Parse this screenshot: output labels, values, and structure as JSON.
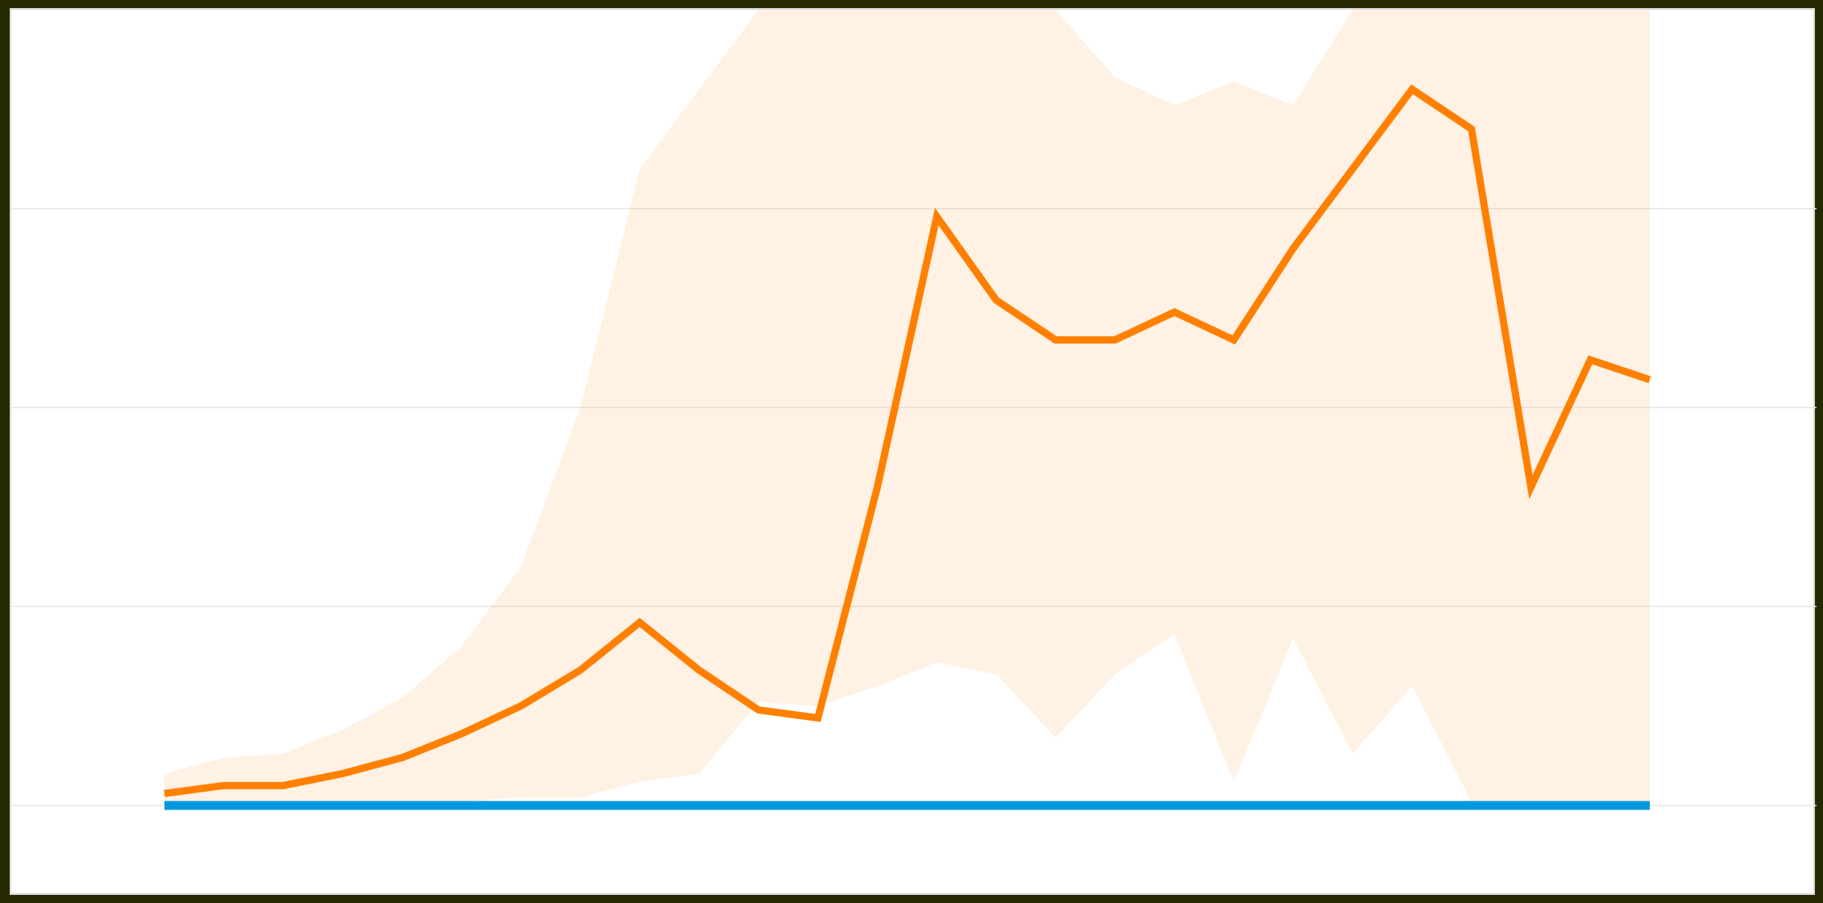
{
  "chart_data": {
    "type": "line",
    "title": "",
    "xlabel": "",
    "ylabel": "",
    "ylim": [
      0,
      2000
    ],
    "grid": true,
    "legend": "none",
    "x": [
      1,
      2,
      3,
      4,
      5,
      6,
      7,
      8,
      9,
      10,
      11,
      12,
      13,
      14,
      15,
      16,
      17,
      18,
      19,
      20,
      21,
      22,
      23,
      24,
      25,
      26
    ],
    "series": [
      {
        "color": "#ff8000",
        "values": [
          30,
          50,
          50,
          80,
          120,
          180,
          250,
          340,
          460,
          340,
          240,
          220,
          800,
          1480,
          1270,
          1170,
          1170,
          1240,
          1170,
          1400,
          1600,
          1800,
          1700,
          800,
          1120,
          1070
        ],
        "band_upper": [
          80,
          120,
          130,
          190,
          270,
          400,
          600,
          1000,
          1600,
          1800,
          2000,
          2000,
          2000,
          2000,
          2000,
          2000,
          1830,
          1760,
          1820,
          1760,
          2000,
          2000,
          2000,
          2000,
          2000,
          2000
        ],
        "band_lower": [
          0,
          0,
          0,
          0,
          0,
          10,
          20,
          20,
          60,
          80,
          260,
          250,
          300,
          360,
          330,
          170,
          330,
          430,
          60,
          420,
          130,
          300,
          10,
          10,
          10,
          10
        ]
      },
      {
        "color": "#0099dd",
        "values": [
          0,
          0,
          0,
          0,
          0,
          0,
          0,
          0,
          0,
          0,
          0,
          0,
          0,
          0,
          0,
          0,
          0,
          0,
          0,
          0,
          0,
          0,
          0,
          0,
          0,
          0
        ]
      }
    ]
  }
}
